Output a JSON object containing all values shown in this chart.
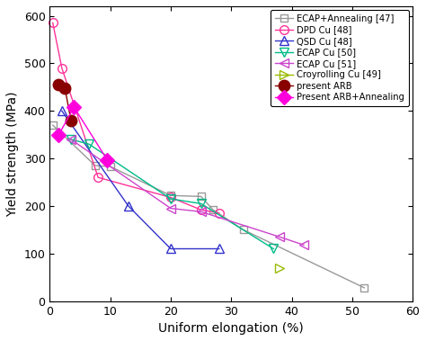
{
  "title": "",
  "xlabel": "Uniform elongation (%)",
  "ylabel": "Yield strength (MPa)",
  "xlim": [
    0,
    60
  ],
  "ylim": [
    0,
    620
  ],
  "xticks": [
    0,
    10,
    20,
    30,
    40,
    50,
    60
  ],
  "yticks": [
    0,
    100,
    200,
    300,
    400,
    500,
    600
  ],
  "series": [
    {
      "label": "ECAP+Annealing [47]",
      "color": "#999999",
      "marker": "s",
      "fillstyle": "none",
      "markersize": 6,
      "linewidth": 1.0,
      "x": [
        0.5,
        7.5,
        10,
        20,
        25,
        27,
        32,
        52
      ],
      "y": [
        370,
        285,
        283,
        222,
        220,
        192,
        150,
        28
      ]
    },
    {
      "label": "DPD Cu [48]",
      "color": "#ff3399",
      "marker": "o",
      "fillstyle": "none",
      "markersize": 7,
      "linewidth": 1.0,
      "x": [
        0.5,
        2.0,
        8,
        20,
        25,
        28
      ],
      "y": [
        585,
        490,
        260,
        218,
        192,
        185
      ]
    },
    {
      "label": "QSD Cu [48]",
      "color": "#3333cc",
      "marker": "^",
      "fillstyle": "none",
      "markersize": 7,
      "linewidth": 1.0,
      "x": [
        2.0,
        13,
        20,
        28
      ],
      "y": [
        400,
        200,
        110,
        110
      ]
    },
    {
      "label": "ECAP Cu [50]",
      "color": "#00bb88",
      "marker": "v",
      "fillstyle": "none",
      "markersize": 7,
      "linewidth": 1.0,
      "x": [
        3.5,
        6.5,
        20,
        25,
        37
      ],
      "y": [
        340,
        330,
        215,
        205,
        110
      ]
    },
    {
      "label": "ECAP Cu [51]",
      "color": "#cc44cc",
      "marker": "<",
      "fillstyle": "none",
      "markersize": 7,
      "linewidth": 1.0,
      "x": [
        3.5,
        20,
        25,
        38,
        42
      ],
      "y": [
        340,
        195,
        188,
        135,
        118
      ]
    },
    {
      "label": "Croyrolling Cu [49]",
      "color": "#99bb00",
      "marker": ">",
      "fillstyle": "none",
      "markersize": 7,
      "linewidth": 1.0,
      "x": [
        38
      ],
      "y": [
        70
      ]
    },
    {
      "label": "present ARB",
      "color": "#880000",
      "marker": "o",
      "fillstyle": "full",
      "markersize": 9,
      "linewidth": 1.0,
      "x": [
        1.5,
        2.5,
        3.5
      ],
      "y": [
        455,
        448,
        380
      ]
    },
    {
      "label": "Present ARB+Annealing",
      "color": "#ff00dd",
      "marker": "D",
      "fillstyle": "full",
      "markersize": 8,
      "linewidth": 1.0,
      "x": [
        1.5,
        4.0,
        9.5
      ],
      "y": [
        350,
        408,
        297
      ]
    }
  ]
}
